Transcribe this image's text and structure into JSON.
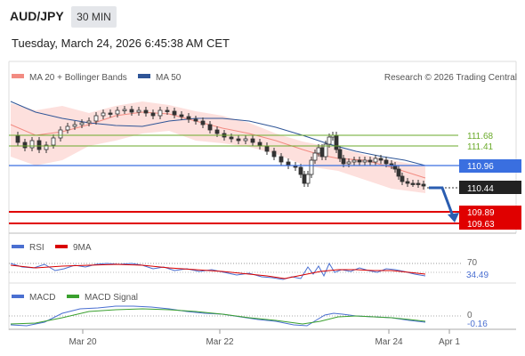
{
  "header": {
    "symbol": "AUD/JPY",
    "timeframe": "30 MIN",
    "datetime": "Tuesday, March 24, 2026 6:45:38 AM CET"
  },
  "legend": {
    "main": [
      {
        "label": "MA 20 + Bollinger Bands",
        "color": "#f28b82"
      },
      {
        "label": "MA 50",
        "color": "#2f5597"
      }
    ],
    "credit": "Research © 2026 Trading Central",
    "rsi": [
      {
        "label": "RSI",
        "color": "#4a6fd1"
      },
      {
        "label": "9MA",
        "color": "#d90000"
      }
    ],
    "macd": [
      {
        "label": "MACD",
        "color": "#4a6fd1"
      },
      {
        "label": "MACD Signal",
        "color": "#3aa02e"
      }
    ]
  },
  "colors": {
    "resistance": "#6aaa2a",
    "pivot": "#3a6fe0",
    "support": "#e00000",
    "current": "#222222",
    "forecast_arrow": "#2a5db0",
    "band_fill": "#fde0dd"
  },
  "chart_data": [
    {
      "type": "candlestick",
      "title": "",
      "levels": [
        {
          "value": 111.68,
          "label": "111.68",
          "kind": "resistance"
        },
        {
          "value": 111.41,
          "label": "111.41",
          "kind": "resistance"
        },
        {
          "value": 110.96,
          "label": "110.96",
          "kind": "pivot"
        },
        {
          "value": 110.44,
          "label": "110.44",
          "kind": "current"
        },
        {
          "value": 109.89,
          "label": "109.89",
          "kind": "support"
        },
        {
          "value": 109.63,
          "label": "109.63",
          "kind": "support"
        }
      ],
      "x_ticks": [
        "Mar 20",
        "Mar 22",
        "Mar 24",
        "Apr 1"
      ],
      "ylim": [
        109.4,
        113.2
      ],
      "grid": false
    },
    {
      "type": "line",
      "title": "RSI",
      "ticks": [
        {
          "value": 70,
          "label": "70"
        }
      ],
      "current": "34.49",
      "ylim": [
        0,
        100
      ]
    },
    {
      "type": "line",
      "title": "MACD",
      "ticks": [
        {
          "value": 0,
          "label": "0"
        }
      ],
      "current": "-0.16",
      "ylim": [
        -0.5,
        0.5
      ]
    }
  ]
}
